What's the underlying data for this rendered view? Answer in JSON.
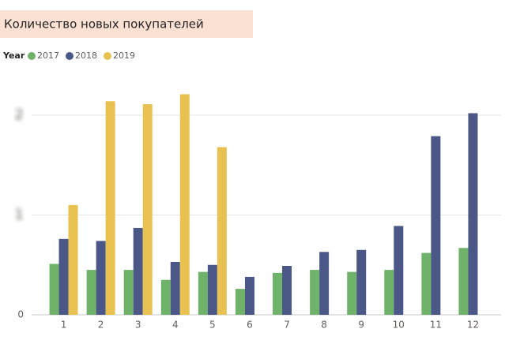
{
  "chart_data": {
    "type": "bar",
    "title": "Количество новых покупателей",
    "legend_title": "Year",
    "categories": [
      "1",
      "2",
      "3",
      "4",
      "5",
      "6",
      "7",
      "8",
      "9",
      "10",
      "11",
      "12"
    ],
    "series": [
      {
        "name": "2017",
        "color": "#6fb26a",
        "values": [
          0.51,
          0.45,
          0.45,
          0.35,
          0.43,
          0.26,
          0.42,
          0.45,
          0.43,
          0.45,
          0.62,
          0.67
        ]
      },
      {
        "name": "2018",
        "color": "#4a5787",
        "values": [
          0.76,
          0.74,
          0.87,
          0.53,
          0.5,
          0.38,
          0.49,
          0.63,
          0.65,
          0.89,
          1.79,
          2.02
        ]
      },
      {
        "name": "2019",
        "color": "#e8c150",
        "values": [
          1.1,
          2.14,
          2.11,
          2.21,
          1.68,
          null,
          null,
          null,
          null,
          null,
          null,
          null
        ]
      }
    ],
    "ylim": [
      0,
      2.4
    ],
    "yticks": [
      0,
      1,
      2
    ],
    "grid": true,
    "legend": "top-left"
  }
}
